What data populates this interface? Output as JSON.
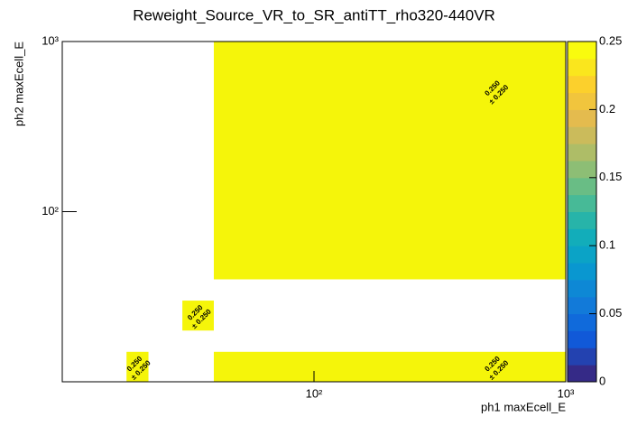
{
  "chart_data": {
    "type": "heatmap",
    "title": "Reweight_Source_VR_to_SR_antiTT_rho320-440VR",
    "x_label": "ph1 maxEcell_E",
    "y_label": "ph2 maxEcell_E",
    "xlim": [
      10,
      1000
    ],
    "ylim": [
      10,
      1000
    ],
    "xlog": true,
    "ylog": true,
    "xticks": [
      {
        "value": 100,
        "label": "10²"
      },
      {
        "value": 1000,
        "label": "10³"
      }
    ],
    "yticks": [
      {
        "value": 100,
        "label": "10²"
      },
      {
        "value": 1000,
        "label": "10³"
      }
    ],
    "zlim": [
      0,
      0.25
    ],
    "zticks": [
      0,
      0.05,
      0.1,
      0.15,
      0.2,
      0.25
    ],
    "color": "#f5f50a",
    "cells": [
      {
        "x": [
          40,
          1000
        ],
        "y": [
          40,
          1000
        ],
        "value": 0.25,
        "value_label": "0.250",
        "error": 0.25,
        "error_label": "± 0.250"
      },
      {
        "x": [
          30,
          40
        ],
        "y": [
          20,
          30
        ],
        "value": 0.25,
        "value_label": "0.250",
        "error": 0.25,
        "error_label": "± 0.250"
      },
      {
        "x": [
          18,
          22
        ],
        "y": [
          10,
          15
        ],
        "value": 0.25,
        "value_label": "0.250",
        "error": 0.25,
        "error_label": "± 0.250"
      },
      {
        "x": [
          40,
          1000
        ],
        "y": [
          10,
          15
        ],
        "value": 0.25,
        "value_label": "0.250",
        "error": 0.25,
        "error_label": "± 0.250"
      }
    ]
  }
}
